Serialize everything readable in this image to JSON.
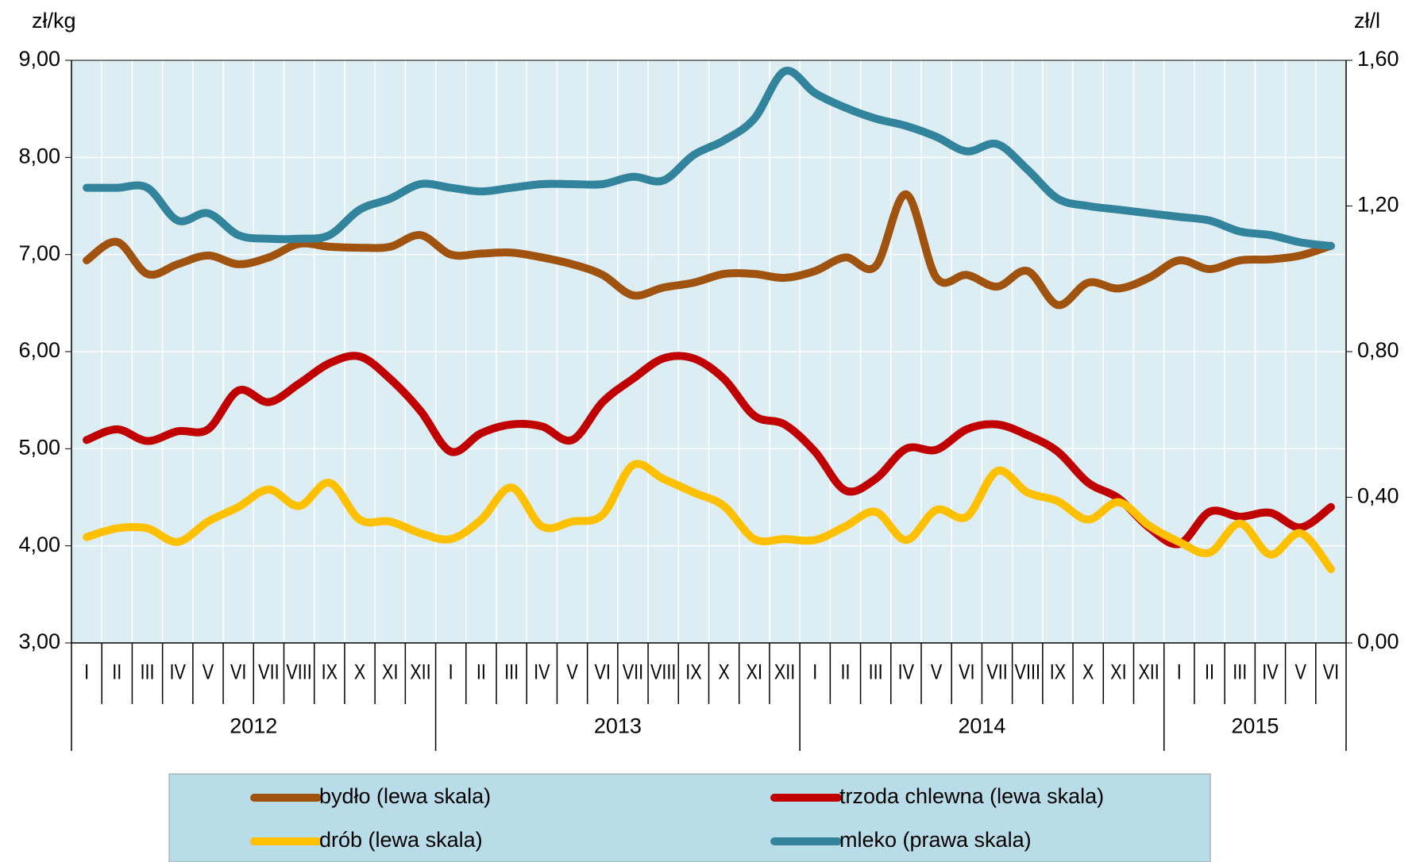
{
  "chart_data": {
    "type": "line",
    "y_axis_label": "zł/kg",
    "y2_axis_label": "zł/l",
    "categories": [
      "I",
      "II",
      "III",
      "IV",
      "V",
      "VI",
      "VII",
      "VIII",
      "IX",
      "X",
      "XI",
      "XII",
      "I",
      "II",
      "III",
      "IV",
      "V",
      "VI",
      "VII",
      "VIII",
      "IX",
      "X",
      "XI",
      "XII",
      "I",
      "II",
      "III",
      "IV",
      "V",
      "VI",
      "VII",
      "VIII",
      "IX",
      "X",
      "XI",
      "XII",
      "I",
      "II",
      "III",
      "IV",
      "V",
      "VI"
    ],
    "groups": [
      "2012",
      "2013",
      "2014",
      "2015"
    ],
    "series": [
      {
        "name": "bydło (lewa skala)",
        "color": "#a0520f",
        "axis": "y",
        "values": [
          6.94,
          7.13,
          6.8,
          6.9,
          6.99,
          6.9,
          6.97,
          7.11,
          7.08,
          7.07,
          7.08,
          7.2,
          7.0,
          7.01,
          7.02,
          6.97,
          6.9,
          6.79,
          6.58,
          6.66,
          6.71,
          6.8,
          6.8,
          6.76,
          6.83,
          6.97,
          6.88,
          7.62,
          6.76,
          6.79,
          6.67,
          6.83,
          6.48,
          6.71,
          6.65,
          6.76,
          6.94,
          6.85,
          6.94,
          6.95,
          6.99,
          7.09
        ]
      },
      {
        "name": "trzoda chlewna (lewa skala)",
        "color": "#c00000",
        "axis": "y",
        "values": [
          5.09,
          5.2,
          5.08,
          5.18,
          5.2,
          5.6,
          5.48,
          5.67,
          5.88,
          5.95,
          5.72,
          5.39,
          4.97,
          5.16,
          5.25,
          5.23,
          5.09,
          5.48,
          5.72,
          5.93,
          5.93,
          5.72,
          5.34,
          5.25,
          4.97,
          4.57,
          4.69,
          5.0,
          4.99,
          5.2,
          5.25,
          5.14,
          4.97,
          4.65,
          4.49,
          4.19,
          4.02,
          4.35,
          4.3,
          4.34,
          4.19,
          4.4
        ]
      },
      {
        "name": "drób (lewa skala)",
        "color": "#ffc000",
        "axis": "y",
        "values": [
          4.09,
          4.18,
          4.18,
          4.04,
          4.25,
          4.4,
          4.58,
          4.41,
          4.65,
          4.27,
          4.25,
          4.13,
          4.07,
          4.27,
          4.6,
          4.2,
          4.25,
          4.32,
          4.83,
          4.69,
          4.55,
          4.41,
          4.07,
          4.07,
          4.06,
          4.2,
          4.35,
          4.06,
          4.37,
          4.3,
          4.77,
          4.55,
          4.46,
          4.27,
          4.45,
          4.21,
          4.04,
          3.93,
          4.23,
          3.91,
          4.13,
          3.76
        ]
      },
      {
        "name": "mleko (prawa skala)",
        "color": "#31849b",
        "axis": "y2",
        "values": [
          1.25,
          1.25,
          1.25,
          1.16,
          1.18,
          1.12,
          1.11,
          1.11,
          1.12,
          1.19,
          1.22,
          1.26,
          1.25,
          1.24,
          1.25,
          1.26,
          1.26,
          1.26,
          1.28,
          1.27,
          1.34,
          1.38,
          1.44,
          1.57,
          1.51,
          1.47,
          1.44,
          1.42,
          1.39,
          1.35,
          1.37,
          1.3,
          1.22,
          1.2,
          1.19,
          1.18,
          1.17,
          1.16,
          1.13,
          1.12,
          1.1,
          1.09
        ]
      }
    ],
    "ylim": [
      3,
      9
    ],
    "yticks": [
      {
        "value": 3,
        "label": "3,00"
      },
      {
        "value": 4,
        "label": "4,00"
      },
      {
        "value": 5,
        "label": "5,00"
      },
      {
        "value": 6,
        "label": "6,00"
      },
      {
        "value": 7,
        "label": "7,00"
      },
      {
        "value": 8,
        "label": "8,00"
      },
      {
        "value": 9,
        "label": "9,00"
      }
    ],
    "y2lim": [
      0,
      1.6
    ],
    "y2ticks": [
      {
        "value": 0,
        "label": "0,00"
      },
      {
        "value": 0.4,
        "label": "0,40"
      },
      {
        "value": 0.8,
        "label": "0,80"
      },
      {
        "value": 1.2,
        "label": "1,20"
      },
      {
        "value": 1.6,
        "label": "1,60"
      }
    ],
    "grid": true
  }
}
